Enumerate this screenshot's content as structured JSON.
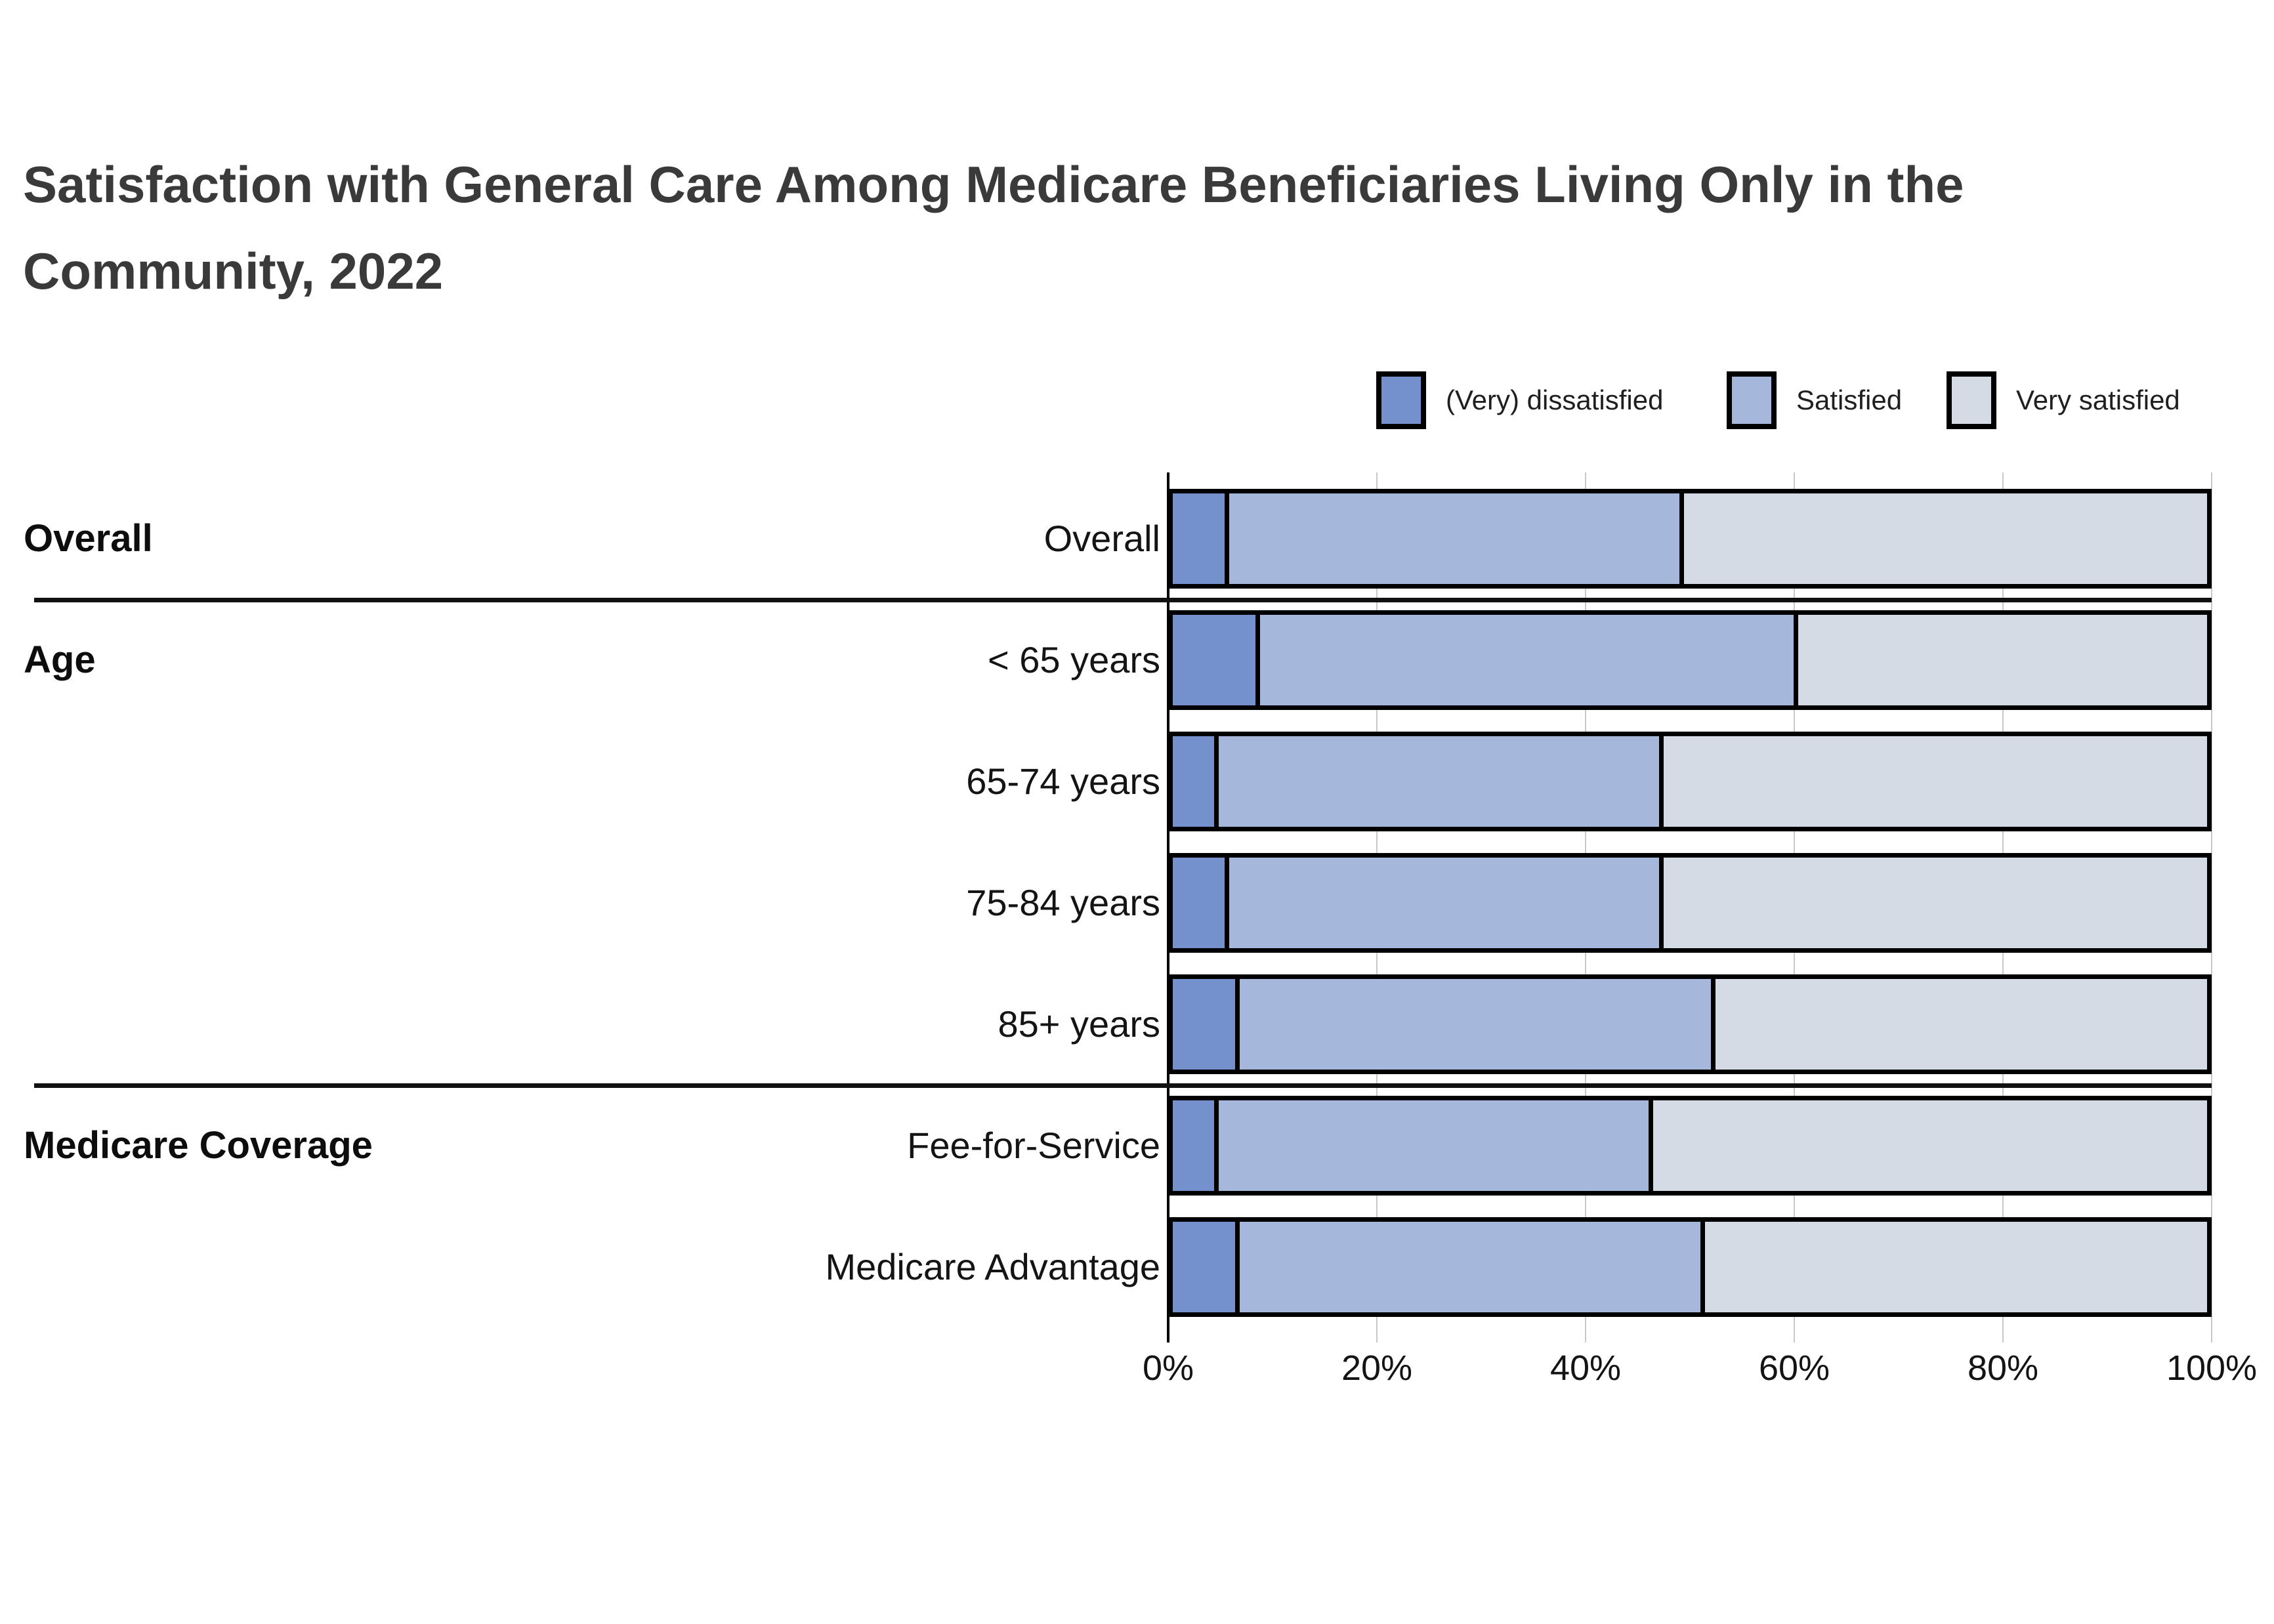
{
  "title": {
    "line1": "Satisfaction with General Care Among Medicare Beneficiaries Living Only in the",
    "line2": "Community, 2022"
  },
  "legend": {
    "items": [
      {
        "label": "(Very) dissatisfied",
        "color": "#7491ce"
      },
      {
        "label": "Satisfied",
        "color": "#a5b8db"
      },
      {
        "label": "Very satisfied",
        "color": "#d4dbe5"
      }
    ]
  },
  "chart_data": {
    "type": "bar",
    "stacked": true,
    "orientation": "horizontal",
    "unit": "percent",
    "series_names": [
      "(Very) dissatisfied",
      "Satisfied",
      "Very satisfied"
    ],
    "series_colors": [
      "#7491ce",
      "#a5b8db",
      "#d4dbe5"
    ],
    "groups": [
      {
        "label": "Overall",
        "rows": [
          {
            "label": "Overall",
            "values": [
              5,
              44,
              51
            ]
          }
        ]
      },
      {
        "label": "Age",
        "rows": [
          {
            "label": "< 65 years",
            "values": [
              8,
              52,
              40
            ]
          },
          {
            "label": "65-74 years",
            "values": [
              4,
              43,
              53
            ]
          },
          {
            "label": "75-84 years",
            "values": [
              5,
              42,
              53
            ]
          },
          {
            "label": "85+ years",
            "values": [
              6,
              46,
              48
            ]
          }
        ]
      },
      {
        "label": "Medicare Coverage",
        "rows": [
          {
            "label": "Fee-for-Service",
            "values": [
              4,
              42,
              54
            ]
          },
          {
            "label": "Medicare Advantage",
            "values": [
              6,
              45,
              49
            ]
          }
        ]
      }
    ],
    "x_axis": {
      "min": 0,
      "max": 100,
      "ticks": [
        "0%",
        "20%",
        "40%",
        "60%",
        "80%",
        "100%"
      ],
      "gridlines": true
    },
    "style_colors": {
      "bar_border": "#000000",
      "axis_line": "#000000",
      "gridline": "#c9c9c9",
      "separator": "#111111",
      "title_text": "#3a3a3a"
    }
  }
}
